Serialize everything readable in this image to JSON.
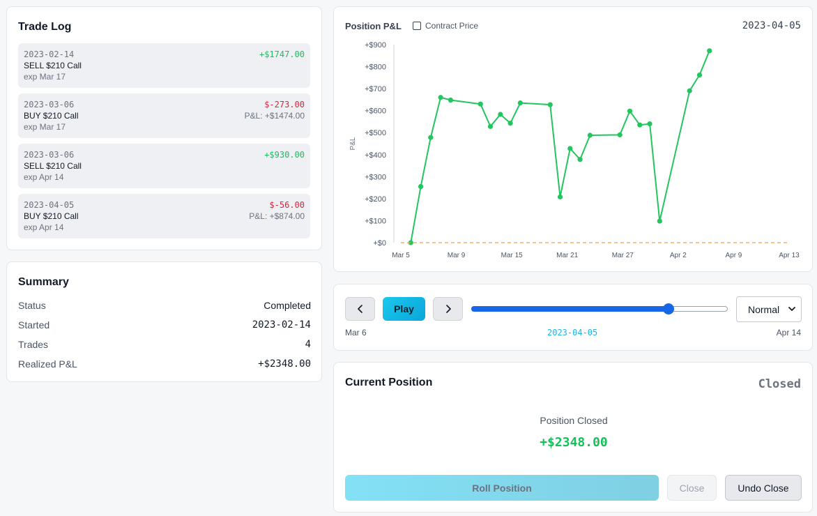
{
  "trade_log": {
    "title": "Trade Log",
    "trades": [
      {
        "date": "2023-02-14",
        "action": "SELL $210 Call",
        "exp": "exp Mar 17",
        "amount": "+$1747.00",
        "amount_sign": "pos",
        "pnl": ""
      },
      {
        "date": "2023-03-06",
        "action": "BUY $210 Call",
        "exp": "exp Mar 17",
        "amount": "$-273.00",
        "amount_sign": "neg",
        "pnl": "P&L: +$1474.00"
      },
      {
        "date": "2023-03-06",
        "action": "SELL $210 Call",
        "exp": "exp Apr 14",
        "amount": "+$930.00",
        "amount_sign": "pos",
        "pnl": ""
      },
      {
        "date": "2023-04-05",
        "action": "BUY $210 Call",
        "exp": "exp Apr 14",
        "amount": "$-56.00",
        "amount_sign": "neg",
        "pnl": "P&L: +$874.00"
      }
    ]
  },
  "summary": {
    "title": "Summary",
    "rows": [
      {
        "label": "Status",
        "value": "Completed"
      },
      {
        "label": "Started",
        "value": "2023-02-14"
      },
      {
        "label": "Trades",
        "value": "4"
      },
      {
        "label": "Realized P&L",
        "value": "+$2348.00"
      }
    ]
  },
  "chart": {
    "title": "Position P&L",
    "toggle_label": "Contract Price",
    "toggle_checked": false,
    "date": "2023-04-05"
  },
  "chart_data": {
    "type": "line",
    "title": "Position P&L",
    "xlabel": "",
    "ylabel": "P&L",
    "x_ticks": [
      "Mar 5",
      "Mar 9",
      "Mar 15",
      "Mar 21",
      "Mar 27",
      "Apr 2",
      "Apr 9",
      "Apr 13"
    ],
    "y_ticks": [
      "+$0",
      "+$100",
      "+$200",
      "+$300",
      "+$400",
      "+$500",
      "+$600",
      "+$700",
      "+$800",
      "+$900"
    ],
    "ylim": [
      0,
      900
    ],
    "x_range": [
      "2023-03-05",
      "2023-04-13"
    ],
    "grid": false,
    "series": [
      {
        "color": "#22c55e",
        "points": [
          {
            "x": "2023-03-06",
            "y": 0
          },
          {
            "x": "2023-03-07",
            "y": 255
          },
          {
            "x": "2023-03-08",
            "y": 478
          },
          {
            "x": "2023-03-09",
            "y": 660
          },
          {
            "x": "2023-03-10",
            "y": 648
          },
          {
            "x": "2023-03-13",
            "y": 630
          },
          {
            "x": "2023-03-14",
            "y": 528
          },
          {
            "x": "2023-03-15",
            "y": 583
          },
          {
            "x": "2023-03-16",
            "y": 543
          },
          {
            "x": "2023-03-17",
            "y": 635
          },
          {
            "x": "2023-03-20",
            "y": 627
          },
          {
            "x": "2023-03-21",
            "y": 208
          },
          {
            "x": "2023-03-22",
            "y": 428
          },
          {
            "x": "2023-03-23",
            "y": 378
          },
          {
            "x": "2023-03-24",
            "y": 488
          },
          {
            "x": "2023-03-27",
            "y": 490
          },
          {
            "x": "2023-03-28",
            "y": 598
          },
          {
            "x": "2023-03-29",
            "y": 535
          },
          {
            "x": "2023-03-30",
            "y": 540
          },
          {
            "x": "2023-03-31",
            "y": 98
          },
          {
            "x": "2023-04-03",
            "y": 690
          },
          {
            "x": "2023-04-04",
            "y": 762
          },
          {
            "x": "2023-04-05",
            "y": 872
          }
        ]
      },
      {
        "color": "#f0a04b",
        "dashed": true,
        "points": [
          {
            "x": "2023-03-05",
            "y": 0
          },
          {
            "x": "2023-04-13",
            "y": 0
          }
        ]
      }
    ]
  },
  "playback": {
    "prev_label": "‹",
    "play_label": "Play",
    "next_label": "›",
    "progress": 0.78,
    "speed": "Normal",
    "start_label": "Mar 6",
    "current_label": "2023-04-05",
    "end_label": "Apr 14"
  },
  "position": {
    "title": "Current Position",
    "status": "Closed",
    "closed_label": "Position Closed",
    "closed_amount": "+$2348.00",
    "roll_label": "Roll Position",
    "close_label": "Close",
    "undo_label": "Undo Close"
  },
  "colors": {
    "positive": "#16c15a",
    "negative": "#e0213a",
    "accent": "#1ac8ef",
    "slider": "#1766e6"
  }
}
